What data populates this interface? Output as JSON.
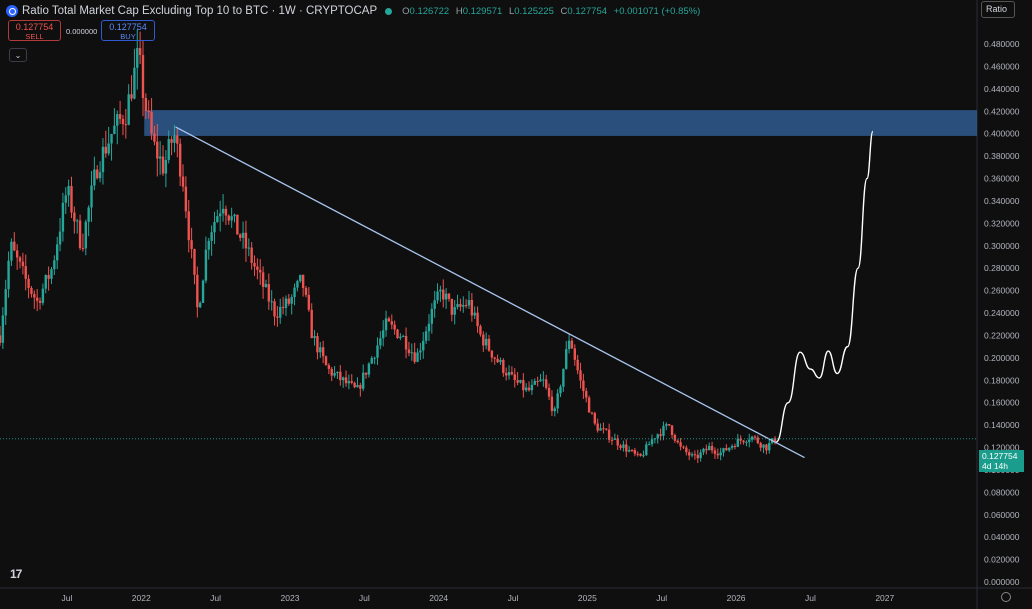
{
  "header": {
    "title": "Ratio Total Market Cap Excluding Top 10 to BTC · 1W · CRYPTOCAP",
    "o_label": "O",
    "o_value": "0.126722",
    "h_label": "H",
    "h_value": "0.129571",
    "l_label": "L",
    "l_value": "0.125225",
    "c_label": "C",
    "c_value": "0.127754",
    "change": "+0.001071 (+0.85%)"
  },
  "trade": {
    "sell_price": "0.127754",
    "sell_label": "SELL",
    "spread": "0.000000",
    "buy_price": "0.127754",
    "buy_label": "BUY"
  },
  "scale_mode": "Ratio",
  "last_price": {
    "value": "0.127754",
    "countdown": "4d 14h"
  },
  "colors": {
    "up": "#26a69a",
    "down": "#ef5350",
    "zone": "#2f5a8f",
    "trendline": "#a9c5ee",
    "projection": "#ffffff",
    "background": "#0f0f0f"
  },
  "chart_data": {
    "type": "candlestick",
    "interval": "1W",
    "y_scale": "linear",
    "ylim": [
      0.0,
      0.5
    ],
    "y_ticks": [
      "0.480000",
      "0.460000",
      "0.440000",
      "0.420000",
      "0.400000",
      "0.380000",
      "0.360000",
      "0.340000",
      "0.320000",
      "0.300000",
      "0.280000",
      "0.260000",
      "0.240000",
      "0.220000",
      "0.200000",
      "0.180000",
      "0.160000",
      "0.140000",
      "0.120000",
      "0.100000",
      "0.080000",
      "0.060000",
      "0.040000",
      "0.020000",
      "0.000000"
    ],
    "x_ticks": [
      {
        "label": "Jul",
        "t": 2021.5
      },
      {
        "label": "2022",
        "t": 2022.0
      },
      {
        "label": "Jul",
        "t": 2022.5
      },
      {
        "label": "2023",
        "t": 2023.0
      },
      {
        "label": "Jul",
        "t": 2023.5
      },
      {
        "label": "2024",
        "t": 2024.0
      },
      {
        "label": "Jul",
        "t": 2024.5
      },
      {
        "label": "2025",
        "t": 2025.0
      },
      {
        "label": "Jul",
        "t": 2025.5
      },
      {
        "label": "2026",
        "t": 2026.0
      },
      {
        "label": "Jul",
        "t": 2026.5
      },
      {
        "label": "2027",
        "t": 2027.0
      }
    ],
    "xlim": [
      2021.05,
      2027.62
    ],
    "price_path": [
      [
        2021.05,
        0.22
      ],
      [
        2021.12,
        0.3
      ],
      [
        2021.22,
        0.27
      ],
      [
        2021.3,
        0.25
      ],
      [
        2021.4,
        0.28
      ],
      [
        2021.5,
        0.35
      ],
      [
        2021.6,
        0.3
      ],
      [
        2021.7,
        0.37
      ],
      [
        2021.8,
        0.4
      ],
      [
        2021.9,
        0.42
      ],
      [
        2021.98,
        0.47
      ],
      [
        2022.02,
        0.43
      ],
      [
        2022.08,
        0.39
      ],
      [
        2022.15,
        0.37
      ],
      [
        2022.22,
        0.4
      ],
      [
        2022.28,
        0.36
      ],
      [
        2022.33,
        0.3
      ],
      [
        2022.38,
        0.24
      ],
      [
        2022.45,
        0.31
      ],
      [
        2022.55,
        0.34
      ],
      [
        2022.62,
        0.32
      ],
      [
        2022.7,
        0.3
      ],
      [
        2022.8,
        0.27
      ],
      [
        2022.9,
        0.24
      ],
      [
        2023.0,
        0.25
      ],
      [
        2023.08,
        0.27
      ],
      [
        2023.15,
        0.22
      ],
      [
        2023.25,
        0.19
      ],
      [
        2023.35,
        0.18
      ],
      [
        2023.45,
        0.17
      ],
      [
        2023.55,
        0.2
      ],
      [
        2023.65,
        0.23
      ],
      [
        2023.75,
        0.22
      ],
      [
        2023.85,
        0.2
      ],
      [
        2023.95,
        0.24
      ],
      [
        2024.02,
        0.26
      ],
      [
        2024.1,
        0.24
      ],
      [
        2024.2,
        0.25
      ],
      [
        2024.28,
        0.22
      ],
      [
        2024.38,
        0.2
      ],
      [
        2024.5,
        0.18
      ],
      [
        2024.6,
        0.17
      ],
      [
        2024.7,
        0.18
      ],
      [
        2024.78,
        0.15
      ],
      [
        2024.88,
        0.22
      ],
      [
        2024.95,
        0.18
      ],
      [
        2025.05,
        0.14
      ],
      [
        2025.15,
        0.13
      ],
      [
        2025.25,
        0.12
      ],
      [
        2025.35,
        0.11
      ],
      [
        2025.45,
        0.13
      ],
      [
        2025.55,
        0.14
      ],
      [
        2025.62,
        0.12
      ],
      [
        2025.72,
        0.11
      ],
      [
        2025.82,
        0.12
      ],
      [
        2025.9,
        0.115
      ],
      [
        2026.0,
        0.125
      ],
      [
        2026.1,
        0.13
      ],
      [
        2026.2,
        0.12
      ],
      [
        2026.27,
        0.128
      ]
    ],
    "resistance_zone": {
      "y_from": 0.398,
      "y_to": 0.421,
      "x_from": 2022.02
    },
    "trendline": [
      [
        2022.23,
        0.406
      ],
      [
        2026.46,
        0.111
      ]
    ],
    "projection": [
      [
        2026.27,
        0.125
      ],
      [
        2026.35,
        0.16
      ],
      [
        2026.43,
        0.205
      ],
      [
        2026.5,
        0.19
      ],
      [
        2026.56,
        0.182
      ],
      [
        2026.62,
        0.206
      ],
      [
        2026.68,
        0.186
      ],
      [
        2026.75,
        0.21
      ],
      [
        2026.82,
        0.28
      ],
      [
        2026.88,
        0.36
      ],
      [
        2026.92,
        0.402
      ]
    ],
    "last_value": 0.127754
  }
}
